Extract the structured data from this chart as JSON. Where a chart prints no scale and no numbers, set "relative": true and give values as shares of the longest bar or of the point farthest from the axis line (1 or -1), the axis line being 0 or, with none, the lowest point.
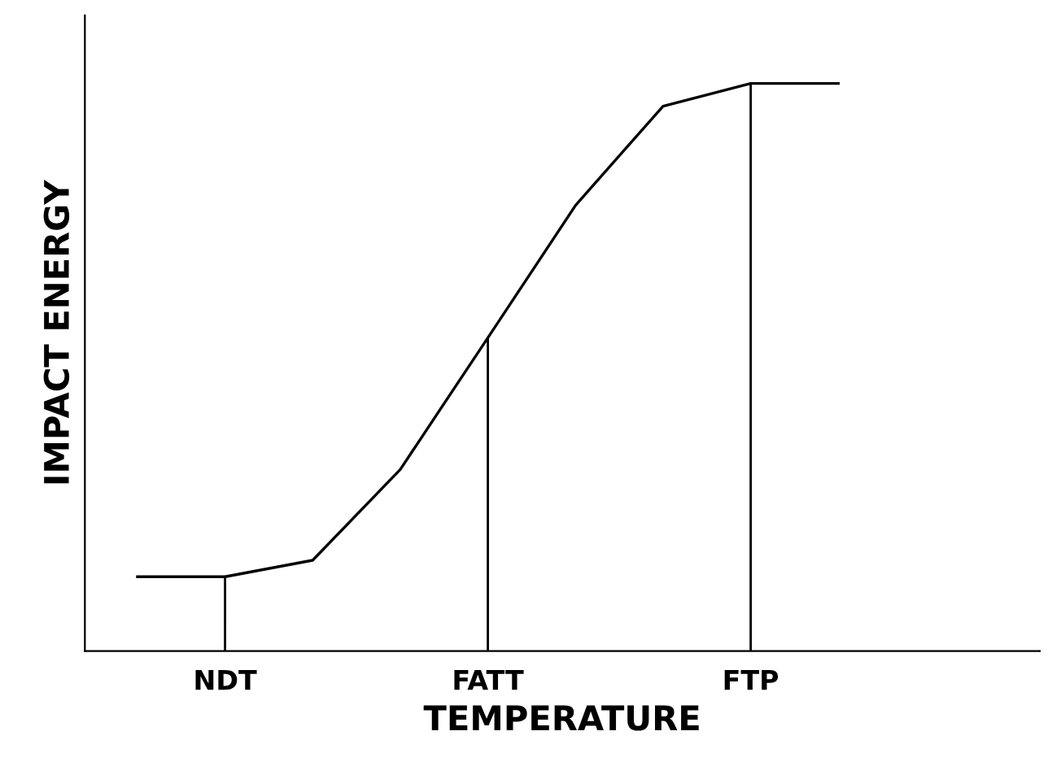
{
  "chart_data": {
    "type": "line",
    "relative": true,
    "xlabel": "TEMPERATURE",
    "ylabel": "IMPACT ENERGY",
    "categories": [
      null,
      "NDT",
      null,
      null,
      "FATT",
      null,
      null,
      "FTP",
      null,
      null,
      null
    ],
    "series": [
      {
        "color": "#000000",
        "values": [
          0.131,
          0.131,
          0.16,
          0.32,
          0.552,
          0.785,
          0.96,
          1,
          1,
          null,
          null
        ]
      }
    ],
    "ref_lines": [
      {
        "axis": "x",
        "value": "NDT",
        "color": "#000000"
      },
      {
        "axis": "x",
        "value": "FATT",
        "color": "#000000"
      },
      {
        "axis": "x",
        "value": "FTP",
        "color": "#000000"
      }
    ],
    "grid": false,
    "legend": false,
    "marker": "none",
    "line_style": "solid"
  }
}
